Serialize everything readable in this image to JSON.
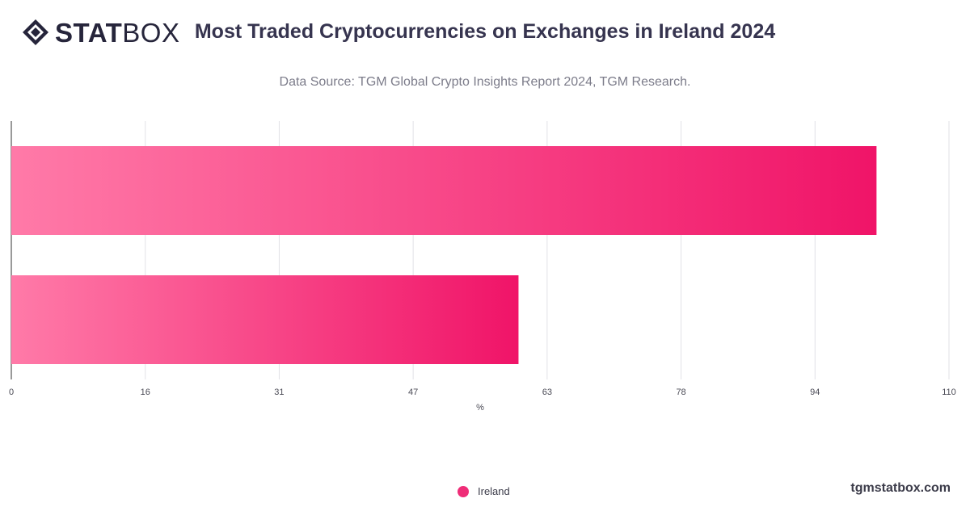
{
  "logo": {
    "text_bold": "STAT",
    "text_light": "BOX",
    "icon": "diamond-logo-icon"
  },
  "colors": {
    "bar_start": "#ff7aa8",
    "bar_end": "#f01468",
    "legend": "#ef2d78",
    "title": "#36344f"
  },
  "footer": {
    "site": "tgmstatbox.com"
  },
  "chart_data": {
    "type": "bar",
    "orientation": "horizontal",
    "title": "Most Traded Cryptocurrencies on Exchanges in Ireland 2024",
    "subtitle": "Data Source: TGM Global Crypto Insights Report 2024, TGM Research.",
    "categories": [
      "",
      ""
    ],
    "series": [
      {
        "name": "Ireland",
        "values": [
          101.5,
          59.5
        ]
      }
    ],
    "xlabel": "%",
    "xlim": [
      0,
      110
    ],
    "xticks": [
      "0",
      "16",
      "31",
      "47",
      "63",
      "78",
      "94",
      "110"
    ],
    "grid": true,
    "legend_position": "bottom-center"
  }
}
